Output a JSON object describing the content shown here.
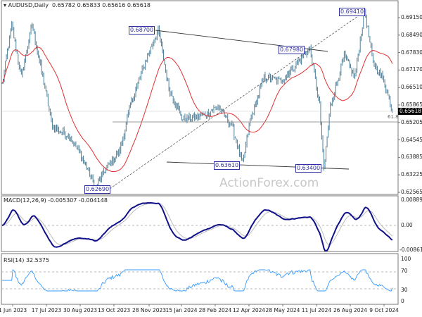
{
  "header": {
    "symbol": "AUDUSD,Daily",
    "ohlc": "0.65782 0.65833 0.65616 0.65618"
  },
  "watermark": "ActionForex.com",
  "current_price": "0.65618",
  "fib_label": "61.8",
  "price_labels": [
    "0.68700",
    "0.67980",
    "0.69410",
    "0.63610",
    "0.63400",
    "0.62690"
  ],
  "colors": {
    "bars": "#4f7f98",
    "ma": "#e03030",
    "macd": "#10108a",
    "signal": "#bbbbbb",
    "rsi": "#3399ff",
    "label": "#3030a0"
  },
  "chart_data": {
    "type": "ohlc",
    "title": "AUDUSD,Daily",
    "y_ticks": [
      "0.69150",
      "0.68490",
      "0.67830",
      "0.67170",
      "0.66510",
      "0.65865",
      "0.65205",
      "0.64545",
      "0.63885",
      "0.63225",
      "0.62565"
    ],
    "ylim": [
      0.62565,
      0.6915
    ],
    "x_ticks": [
      "1 Jun 2023",
      "17 Jul 2023",
      "30 Aug 2023",
      "13 Oct 2023",
      "28 Nov 2023",
      "15 Jan 2024",
      "28 Feb 2024",
      "12 Apr 2024",
      "28 May 2024",
      "11 Jul 2024",
      "26 Aug 2024",
      "9 Oct 2024"
    ],
    "bars_count": 366,
    "close_keypoints": [
      [
        0,
        0.6662
      ],
      [
        9,
        0.6885
      ],
      [
        18,
        0.669
      ],
      [
        28,
        0.6888
      ],
      [
        37,
        0.6712
      ],
      [
        47,
        0.6505
      ],
      [
        64,
        0.6465
      ],
      [
        80,
        0.6345
      ],
      [
        87,
        0.6269
      ],
      [
        97,
        0.6345
      ],
      [
        110,
        0.641
      ],
      [
        120,
        0.6585
      ],
      [
        136,
        0.677
      ],
      [
        146,
        0.687
      ],
      [
        156,
        0.665
      ],
      [
        169,
        0.653
      ],
      [
        189,
        0.6545
      ],
      [
        202,
        0.658
      ],
      [
        215,
        0.6505
      ],
      [
        225,
        0.6361
      ],
      [
        232,
        0.6525
      ],
      [
        245,
        0.669
      ],
      [
        261,
        0.6675
      ],
      [
        278,
        0.6755
      ],
      [
        288,
        0.6798
      ],
      [
        297,
        0.658
      ],
      [
        301,
        0.634
      ],
      [
        307,
        0.658
      ],
      [
        320,
        0.677
      ],
      [
        330,
        0.669
      ],
      [
        339,
        0.6941
      ],
      [
        347,
        0.6745
      ],
      [
        357,
        0.668
      ],
      [
        365,
        0.6562
      ]
    ],
    "levels": {
      "support_h": 0.6521,
      "resistance_line": [
        0.687,
        0.6798
      ],
      "support_line": [
        0.6361,
        0.634
      ]
    },
    "macd": {
      "label": "MACD(12,26,9) -0.005307 -0.004148",
      "ticks": [
        "0.008896",
        "0.00",
        "-0.008612"
      ],
      "ylim": [
        -0.008612,
        0.008896
      ]
    },
    "rsi": {
      "label": "RSI(14) 32.5375",
      "ticks": [
        "100",
        "70",
        "30",
        "0"
      ],
      "levels": [
        70,
        30
      ]
    }
  }
}
